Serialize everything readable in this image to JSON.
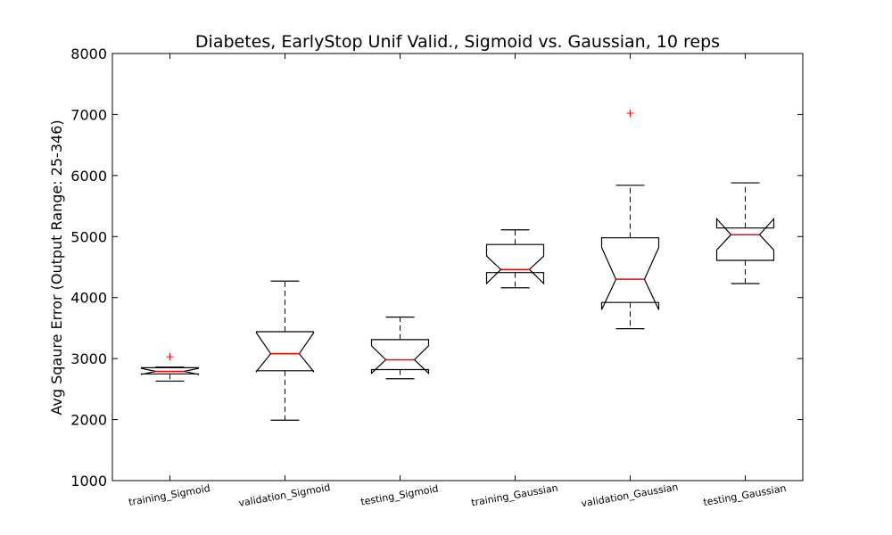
{
  "chart_data": {
    "type": "boxplot",
    "title": "Diabetes, EarlyStop Unif Valid., Sigmoid vs. Gaussian, 10 reps",
    "ylabel": "Avg Sqaure Error (Output Range: 25-346)",
    "xlabel": "",
    "ylim": [
      1000,
      8000
    ],
    "yticks": [
      1000,
      2000,
      3000,
      4000,
      5000,
      6000,
      7000,
      8000
    ],
    "notched": true,
    "grid": false,
    "colors": {
      "box": "#000000",
      "median": "#ff0000",
      "flier": "#ff0000"
    },
    "categories": [
      "training_Sigmoid",
      "validation_Sigmoid",
      "testing_Sigmoid",
      "training_Gaussian",
      "validation_Gaussian",
      "testing_Gaussian"
    ],
    "boxes": [
      {
        "whislo": 2630,
        "q1": 2750,
        "med": 2790,
        "q3": 2850,
        "whishi": 2860,
        "notch_lo": 2740,
        "notch_hi": 2840,
        "fliers": [
          3030
        ]
      },
      {
        "whislo": 1990,
        "q1": 2800,
        "med": 3080,
        "q3": 3440,
        "whishi": 4270,
        "notch_lo": 2790,
        "notch_hi": 3420,
        "fliers": []
      },
      {
        "whislo": 2670,
        "q1": 2820,
        "med": 2980,
        "q3": 3310,
        "whishi": 3680,
        "notch_lo": 2760,
        "notch_hi": 3210,
        "fliers": []
      },
      {
        "whislo": 4160,
        "q1": 4410,
        "med": 4460,
        "q3": 4870,
        "whishi": 5110,
        "notch_lo": 4230,
        "notch_hi": 4680,
        "fliers": []
      },
      {
        "whislo": 3490,
        "q1": 3920,
        "med": 4300,
        "q3": 4980,
        "whishi": 5840,
        "notch_lo": 3800,
        "notch_hi": 4820,
        "fliers": [
          7020
        ]
      },
      {
        "whislo": 4230,
        "q1": 4610,
        "med": 5030,
        "q3": 5140,
        "whishi": 5880,
        "notch_lo": 4780,
        "notch_hi": 5290,
        "fliers": []
      }
    ]
  }
}
